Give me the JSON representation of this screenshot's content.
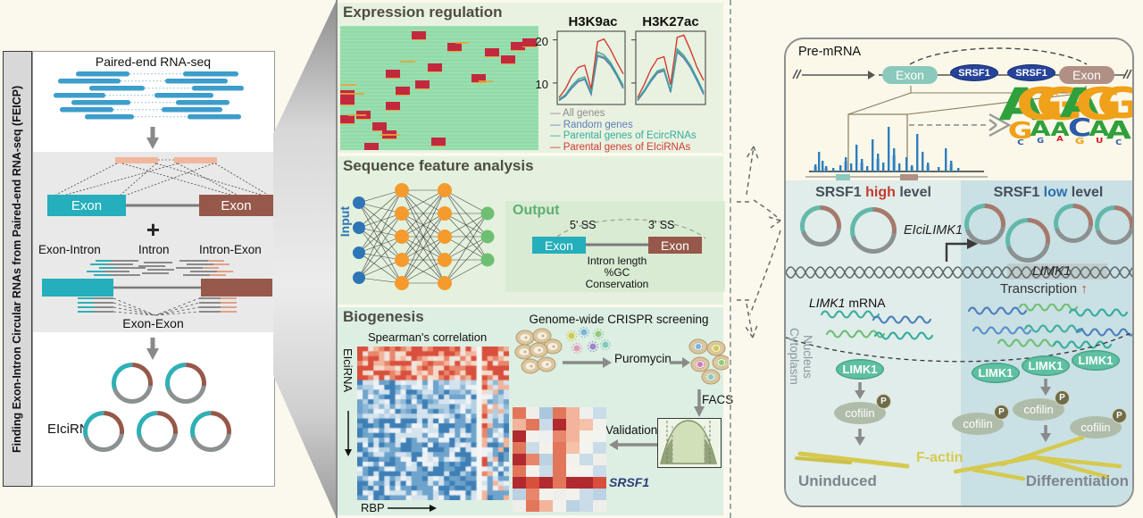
{
  "icons": {
    "up_arrow": "↑"
  },
  "figure": {
    "strip": {
      "line1": "Finding Exon-Intron Circular RNAs from Paired-end RNA-seq",
      "line2": "(FEICP)"
    },
    "left": {
      "top_title": "Paired-end RNA-seq",
      "exon": "Exon",
      "plus": "+",
      "read_types": [
        "Exon-Intron",
        "Intron",
        "Intron-Exon"
      ],
      "junction": "Exon-Exon",
      "result": "EIciRNAs"
    },
    "middle": {
      "expression": {
        "title": "Expression regulation",
        "plot_titles": [
          "H3K9ac",
          "H3K27ac"
        ],
        "yticks": [
          "20",
          "10"
        ],
        "legend": [
          {
            "label": "All genes",
            "color": "#8C8C8C"
          },
          {
            "label": "Random genes",
            "color": "#5C7FB8"
          },
          {
            "label": "Parental genes of EcircRNAs",
            "color": "#35AC9E"
          },
          {
            "label": "Parental genes of EIciRNAs",
            "color": "#D23B33"
          }
        ]
      },
      "sequence": {
        "title": "Sequence feature analysis",
        "input": "Input",
        "output": "Output",
        "ss5": "5' SS",
        "ss3": "3' SS",
        "exon": "Exon",
        "features": [
          "Intron length",
          "%GC",
          "Conservation"
        ]
      },
      "biogenesis": {
        "title": "Biogenesis",
        "corr_title": "Spearman's correlation",
        "yaxis": "EIciRNA",
        "xaxis": "RBP",
        "crispr_title": "Genome-wide CRISPR screening",
        "puromycin": "Puromycin",
        "facs": "FACS",
        "validation": "Validation",
        "hit_gene": "SRSF1"
      }
    },
    "right": {
      "premrna": "Pre-mRNA",
      "exon": "Exon",
      "srsf1": "SRSF1",
      "high_title": {
        "pre": "SRSF1 ",
        "em": "high",
        "post": " level"
      },
      "low_title": {
        "pre": "SRSF1 ",
        "em": "low",
        "post": " level"
      },
      "circ_name": "EIciLIMK1",
      "gene": "LIMK1",
      "transcription": "Transcription",
      "mrna_gene": "LIMK1",
      "mrna_suffix": " mRNA",
      "nucleus": "Nucleus",
      "cytoplasm": "Cytoplasm",
      "limk1": "LIMK1",
      "cofilin": "cofilin",
      "phospho": "P",
      "factin": "F-actin",
      "uninduced": "Uninduced",
      "differentiation": "Differentiation"
    }
  },
  "chart_data": [
    {
      "id": "metagene",
      "type": "line",
      "plots": [
        {
          "title": "H3K9ac",
          "ylim": [
            5,
            22
          ],
          "yticks": [
            20,
            10
          ],
          "series": [
            {
              "name": "All genes",
              "color": "#8C8C8C",
              "values": [
                6,
                7,
                9,
                10.5,
                11,
                7.5,
                16.5,
                16,
                14.5,
                12,
                9
              ]
            },
            {
              "name": "Random genes",
              "color": "#5C7FB8",
              "values": [
                5.9,
                6.9,
                8.8,
                10.3,
                10.8,
                7.3,
                16.2,
                15.7,
                14.1,
                11.6,
                8.7
              ]
            },
            {
              "name": "Parental genes of EcircRNAs",
              "color": "#35AC9E",
              "values": [
                6.2,
                7.3,
                9.4,
                10.9,
                11.4,
                7.9,
                17.2,
                16.5,
                14.8,
                12.2,
                9.4
              ]
            },
            {
              "name": "Parental genes of EIciRNAs",
              "color": "#D23B33",
              "values": [
                6.6,
                8.6,
                11.6,
                13.6,
                14.1,
                8.6,
                19.6,
                20.2,
                17.8,
                14.8,
                12.1
              ]
            }
          ]
        },
        {
          "title": "H3K27ac",
          "ylim": [
            5,
            22
          ],
          "yticks": [
            20,
            10
          ],
          "series": [
            {
              "name": "All genes",
              "color": "#8C8C8C",
              "values": [
                6,
                8,
                10.5,
                12.5,
                13,
                8,
                17.5,
                16,
                13.8,
                10.8,
                7.6
              ]
            },
            {
              "name": "Random genes",
              "color": "#5C7FB8",
              "values": [
                5.9,
                7.9,
                10.3,
                12.3,
                12.8,
                7.8,
                17.2,
                15.7,
                13.5,
                10.5,
                7.3
              ]
            },
            {
              "name": "Parental genes of EcircRNAs",
              "color": "#35AC9E",
              "values": [
                6.2,
                8.3,
                10.8,
                12.8,
                13.3,
                8.3,
                17.9,
                16.4,
                14.1,
                11.1,
                7.9
              ]
            },
            {
              "name": "Parental genes of EIciRNAs",
              "color": "#D23B33",
              "values": [
                6.6,
                9.6,
                13.1,
                15.6,
                16.1,
                9.6,
                20.6,
                21.1,
                17.6,
                13.6,
                10.6
              ]
            }
          ]
        }
      ]
    },
    {
      "id": "expression_heatmap",
      "type": "heatmap",
      "palette": {
        "bg": "#92DBA9",
        "block": "#C2293F",
        "streak": "#E9A23B"
      },
      "blocks": [
        [
          36,
          4
        ],
        [
          54,
          14
        ],
        [
          73,
          18
        ],
        [
          86,
          13
        ],
        [
          81,
          24
        ],
        [
          92,
          10
        ],
        [
          44,
          30
        ],
        [
          23,
          35
        ],
        [
          66,
          39
        ],
        [
          38,
          44
        ],
        [
          28,
          49
        ],
        [
          0,
          52
        ],
        [
          0,
          57
        ],
        [
          23,
          61
        ],
        [
          8,
          68
        ],
        [
          0,
          72
        ],
        [
          16,
          78
        ],
        [
          21,
          84
        ],
        [
          46,
          90
        ],
        [
          12,
          94
        ]
      ],
      "streaks": [
        [
          0,
          54,
          12
        ],
        [
          4,
          71,
          9
        ],
        [
          30,
          28,
          8
        ],
        [
          58,
          13,
          7
        ],
        [
          20,
          87,
          10
        ],
        [
          0,
          47,
          8
        ],
        [
          70,
          44,
          7
        ]
      ]
    },
    {
      "id": "rbp_correlation",
      "type": "heatmap",
      "rows": 32,
      "cols": 28,
      "red_band_rows": 7,
      "split_col": 22,
      "seed": 7,
      "palette_red": [
        "#D94F3D",
        "#E8866B",
        "#F2B49B",
        "#F6D9C8",
        "#EFE3DA"
      ],
      "palette_blue": [
        "#3E7FB5",
        "#6EA3CC",
        "#8FB8D8",
        "#B3CFE3",
        "#D4E3EE",
        "#EDF2F6"
      ]
    },
    {
      "id": "validation_heatmap",
      "type": "heatmap",
      "highlight_row": 6,
      "grid": [
        [
          "#E2765B",
          "#F0EEE8",
          "#A9C8DD",
          "#E2765B",
          "#F2B49B",
          "#EDF0EE",
          "#C9DCE8"
        ],
        [
          "#F2B49B",
          "#E2765B",
          "#C9DCE8",
          "#B02A30",
          "#F2B49B",
          "#F5C1A8",
          "#F3F1EB"
        ],
        [
          "#B02A30",
          "#F3F1EB",
          "#EDEFF0",
          "#E8866B",
          "#F2B49B",
          "#F6F2EC",
          "#F3F3F0"
        ],
        [
          "#E2765B",
          "#C9DCE8",
          "#F3F1EB",
          "#E2765B",
          "#F5C1A8",
          "#F3F3EF",
          "#C9DCE8"
        ],
        [
          "#B02A30",
          "#E8866B",
          "#BBD2E2",
          "#E2765B",
          "#F3F1EB",
          "#C9DCE8",
          "#F0EEE8"
        ],
        [
          "#E2765B",
          "#F3F1EB",
          "#C9DCE8",
          "#E2765B",
          "#F6F2EC",
          "#F3F3F0",
          "#C9DCE8"
        ],
        [
          "#B02A30",
          "#D94F3D",
          "#B02A30",
          "#E2765B",
          "#B02A30",
          "#B02A30",
          "#D94F3D"
        ],
        [
          "#BBD2E2",
          "#E8866B",
          "#F3F1EB",
          "#F0EEE8",
          "#F3F1EB",
          "#C9DCE8",
          "#BBD2E2"
        ],
        [
          "#F0EEE8",
          "#E2765B",
          "#F2B49B",
          "#F3F1EB",
          "#BBD2E2",
          "#C9DCE8",
          "#F0EEE8"
        ]
      ]
    },
    {
      "id": "srsf1_coverage",
      "type": "bar",
      "baseline": 148,
      "bars": [
        [
          32,
          8
        ],
        [
          36,
          22
        ],
        [
          40,
          12
        ],
        [
          44,
          6
        ],
        [
          52,
          4
        ],
        [
          60,
          7
        ],
        [
          66,
          16
        ],
        [
          72,
          9
        ],
        [
          78,
          30
        ],
        [
          84,
          14
        ],
        [
          90,
          6
        ],
        [
          96,
          36
        ],
        [
          102,
          20
        ],
        [
          108,
          10
        ],
        [
          114,
          50
        ],
        [
          120,
          26
        ],
        [
          126,
          9
        ],
        [
          134,
          16
        ],
        [
          140,
          7
        ],
        [
          146,
          42
        ],
        [
          152,
          22
        ],
        [
          158,
          10
        ],
        [
          170,
          5
        ],
        [
          178,
          26
        ],
        [
          184,
          12
        ],
        [
          192,
          4
        ]
      ]
    },
    {
      "id": "motif_logo",
      "type": "logo",
      "letter_colors": {
        "A": "#2FA03C",
        "G": "#F0A11A",
        "C": "#2B5BA8",
        "U": "#CE2029"
      },
      "columns": [
        [
          {
            "ch": "A",
            "c": "A",
            "s": 1.0
          },
          {
            "ch": "G",
            "c": "G",
            "s": 0.52
          },
          {
            "ch": "C",
            "c": "C",
            "s": 0.16
          }
        ],
        [
          {
            "ch": "G",
            "c": "G",
            "s": 1.0
          },
          {
            "ch": "A",
            "c": "A",
            "s": 0.46
          },
          {
            "ch": "G",
            "c": "C",
            "s": 0.15
          }
        ],
        [
          {
            "ch": "G",
            "c": "G",
            "s": 1.0
          },
          {
            "ch": "A",
            "c": "A",
            "s": 0.42
          },
          {
            "ch": "A",
            "c": "U",
            "s": 0.15
          }
        ],
        [
          {
            "ch": "A",
            "c": "A",
            "s": 0.9
          },
          {
            "ch": "C",
            "c": "C",
            "s": 0.55
          },
          {
            "ch": "G",
            "c": "G",
            "s": 0.2
          }
        ],
        [
          {
            "ch": "G",
            "c": "G",
            "s": 1.0
          },
          {
            "ch": "A",
            "c": "A",
            "s": 0.46
          },
          {
            "ch": "U",
            "c": "U",
            "s": 0.16
          }
        ],
        [
          {
            "ch": "G",
            "c": "G",
            "s": 0.95
          },
          {
            "ch": "A",
            "c": "A",
            "s": 0.56
          },
          {
            "ch": "C",
            "c": "C",
            "s": 0.15
          }
        ]
      ]
    }
  ]
}
